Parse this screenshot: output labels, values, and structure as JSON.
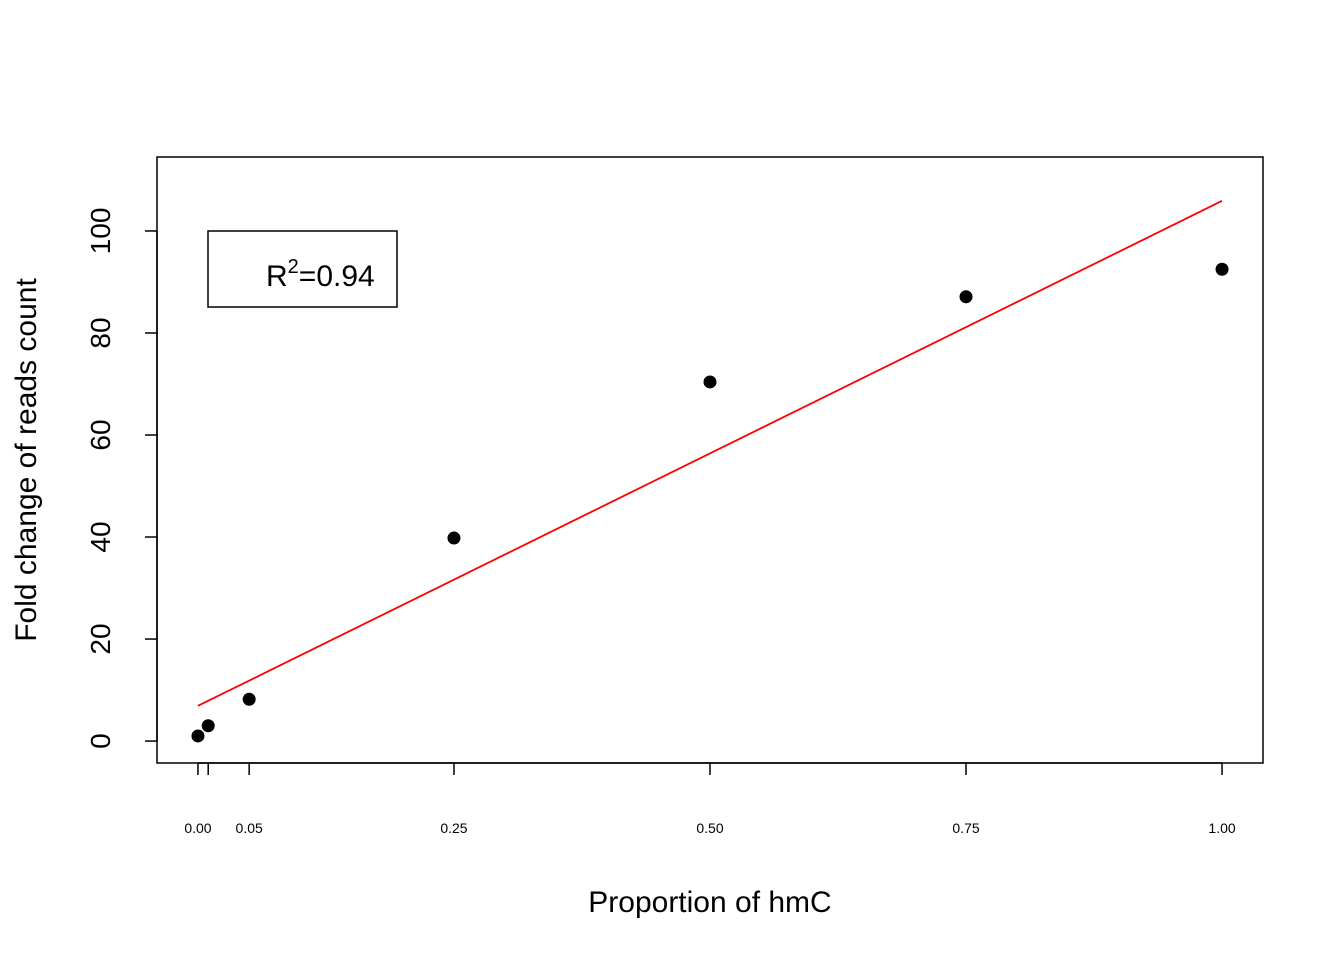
{
  "chart_data": {
    "type": "scatter",
    "xlabel": "Proportion of hmC",
    "ylabel": "Fold change of reads count",
    "x": [
      0,
      0.01,
      0.05,
      0.25,
      0.5,
      0.75,
      1.0
    ],
    "values": [
      1,
      3,
      8.2,
      39.8,
      70.4,
      87.1,
      92.5
    ],
    "color": "#000000",
    "fit": {
      "x": [
        0,
        1
      ],
      "values": [
        6.9,
        105.9
      ],
      "color": "#ff0000"
    },
    "annotation": {
      "base": "R",
      "superscript": "2",
      "rest": "=0.94"
    },
    "xlim": [
      -0.04,
      1.04
    ],
    "ylim": [
      -4.3,
      114.5
    ],
    "xticks": [
      {
        "value": 0,
        "label": "0.00"
      },
      {
        "value": 0.01,
        "label": null
      },
      {
        "value": 0.05,
        "label": "0.05"
      },
      {
        "value": 0.25,
        "label": "0.25"
      },
      {
        "value": 0.5,
        "label": "0.50"
      },
      {
        "value": 0.75,
        "label": "0.75"
      },
      {
        "value": 1.0,
        "label": "1.00"
      }
    ],
    "yticks": [
      0,
      20,
      40,
      60,
      80,
      100
    ],
    "grid": false
  }
}
